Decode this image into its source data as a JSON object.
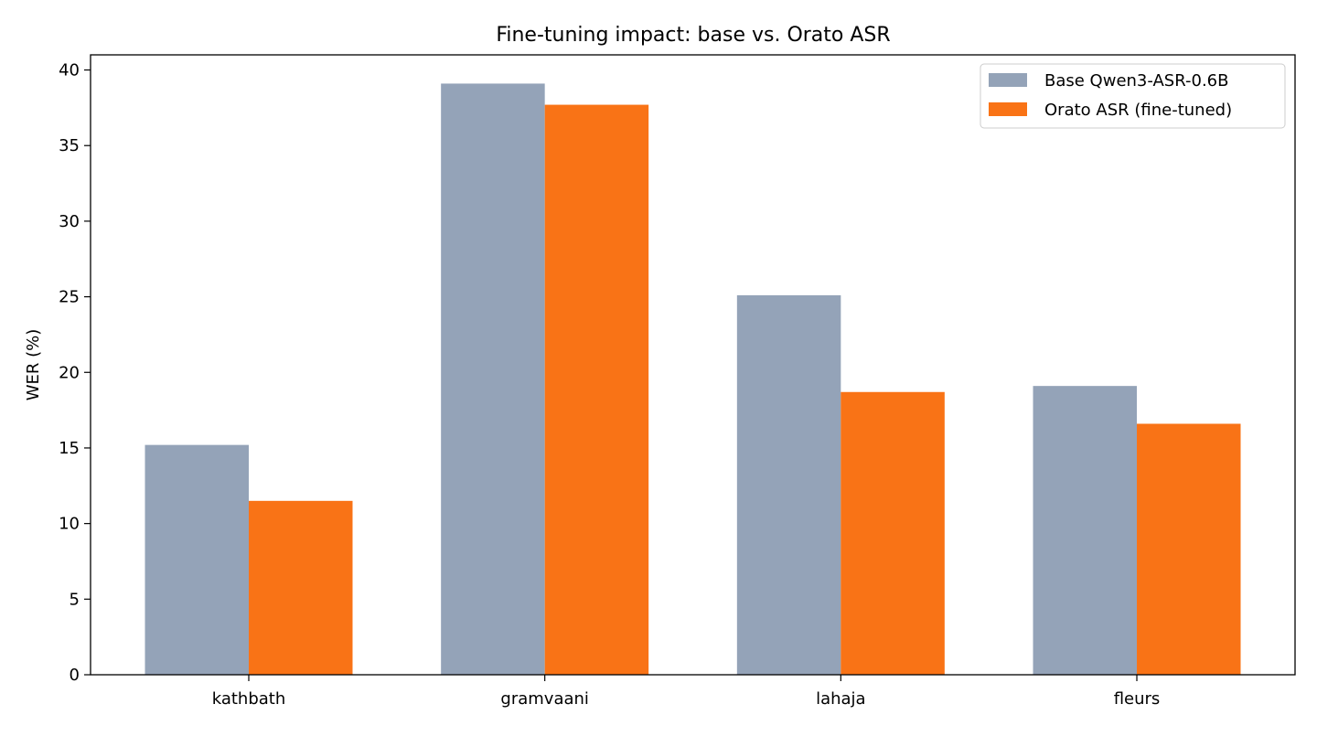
{
  "chart_data": {
    "type": "bar",
    "title": "Fine-tuning impact: base vs. Orato ASR",
    "xlabel": "",
    "ylabel": "WER (%)",
    "categories": [
      "kathbath",
      "gramvaani",
      "lahaja",
      "fleurs"
    ],
    "ylim": [
      0,
      41
    ],
    "yticks": [
      0,
      5,
      10,
      15,
      20,
      25,
      30,
      35,
      40
    ],
    "grid": false,
    "legend_position": "top-right",
    "series": [
      {
        "name": "Base Qwen3-ASR-0.6B",
        "color": "#94a3b8",
        "values": [
          15.2,
          39.1,
          25.1,
          19.1
        ]
      },
      {
        "name": "Orato ASR (fine-tuned)",
        "color": "#f97316",
        "values": [
          11.5,
          37.7,
          18.7,
          16.6
        ]
      }
    ]
  }
}
